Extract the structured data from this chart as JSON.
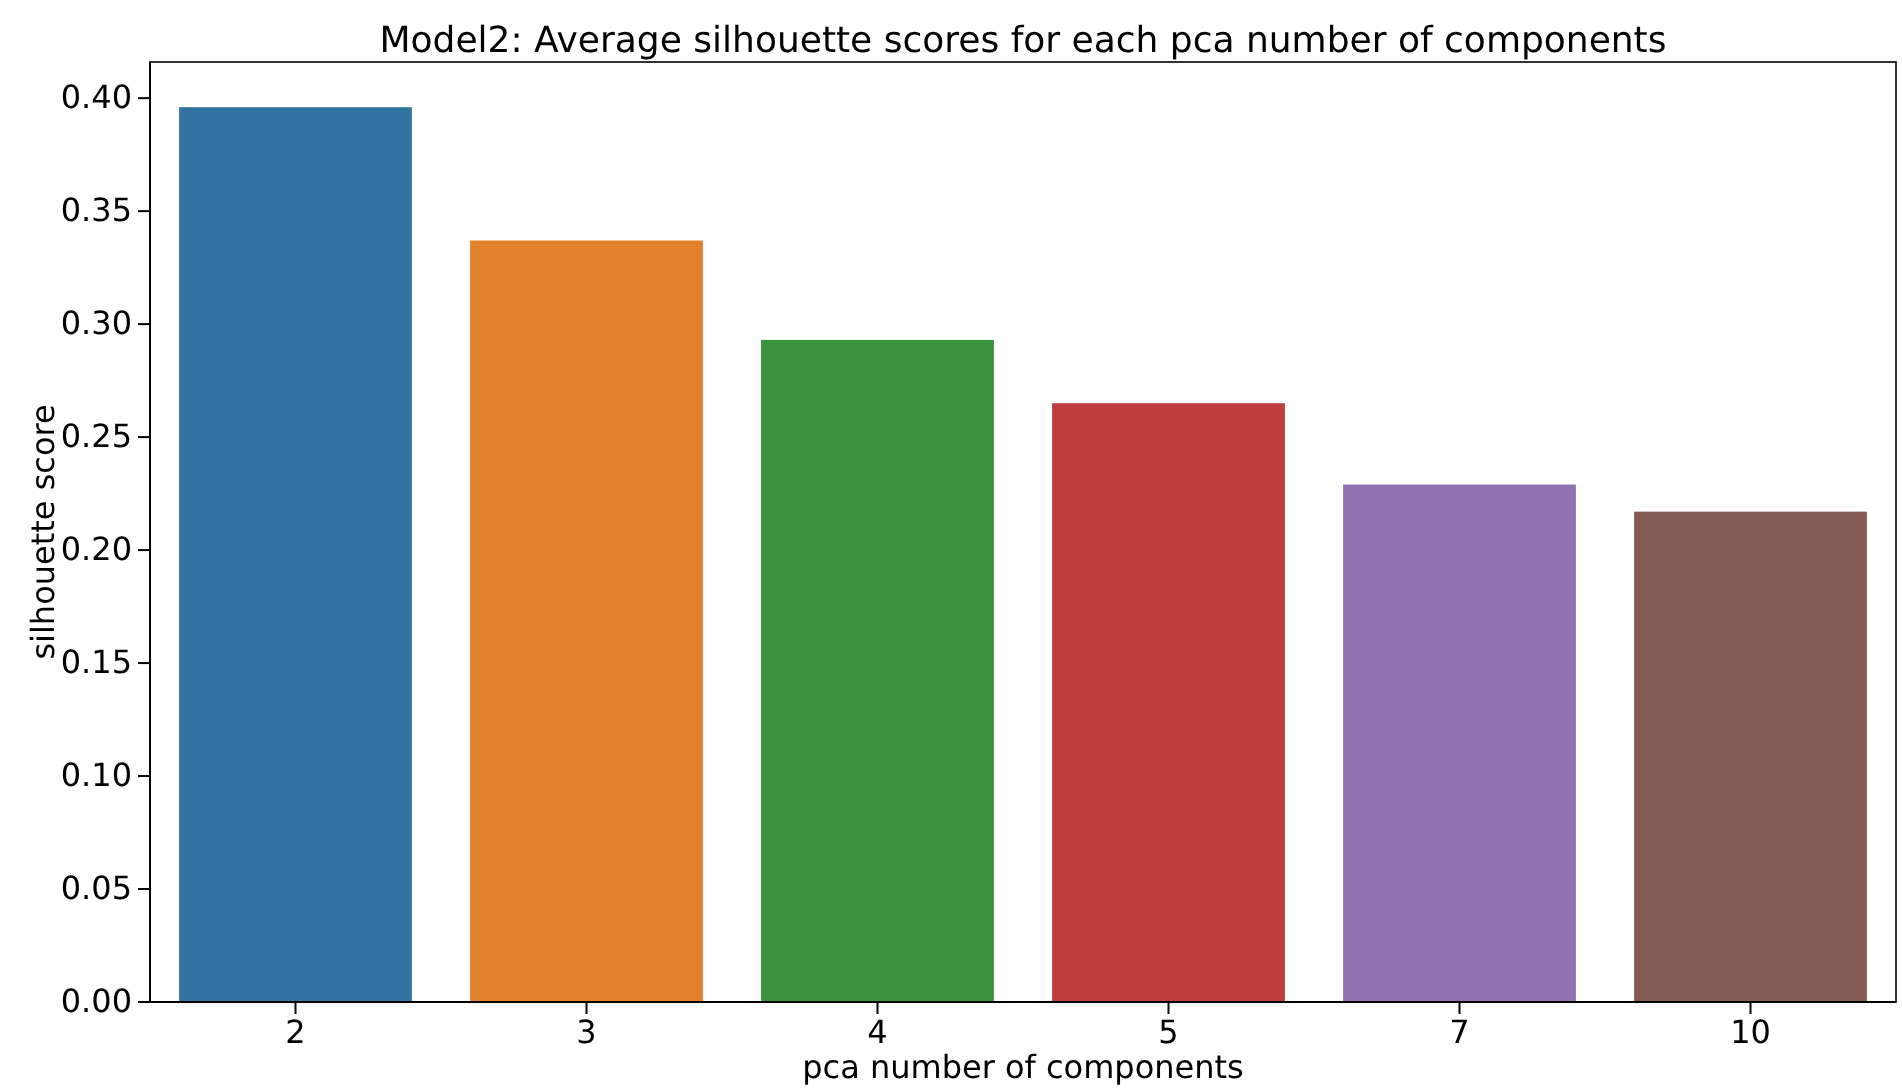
{
  "chart_data": {
    "type": "bar",
    "title": "Model2: Average silhouette scores for each pca number of components",
    "xlabel": "pca number of components",
    "ylabel": "silhouette score",
    "categories": [
      "2",
      "3",
      "4",
      "5",
      "7",
      "10"
    ],
    "values": [
      0.396,
      0.337,
      0.293,
      0.265,
      0.229,
      0.217
    ],
    "colors": [
      "#3274a1",
      "#e1812c",
      "#3a923a",
      "#c03d3e",
      "#9372b2",
      "#845b53"
    ],
    "ylim": [
      0,
      0.416
    ],
    "yticks": [
      {
        "value": 0,
        "label": "0.00"
      },
      {
        "value": 0.05,
        "label": "0.05"
      },
      {
        "value": 0.1,
        "label": "0.10"
      },
      {
        "value": 0.15,
        "label": "0.15"
      },
      {
        "value": 0.2,
        "label": "0.20"
      },
      {
        "value": 0.25,
        "label": "0.25"
      },
      {
        "value": 0.3,
        "label": "0.30"
      },
      {
        "value": 0.35,
        "label": "0.35"
      },
      {
        "value": 0.4,
        "label": "0.40"
      }
    ]
  }
}
